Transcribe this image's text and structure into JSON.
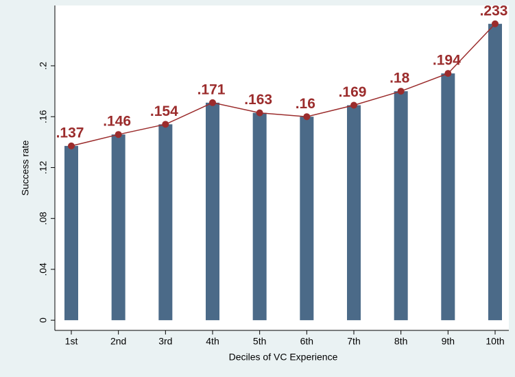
{
  "chart_data": {
    "type": "bar",
    "xlabel": "Deciles of VC Experience",
    "ylabel": "Success rate",
    "categories": [
      "1st",
      "2nd",
      "3rd",
      "4th",
      "5th",
      "6th",
      "7th",
      "8th",
      "9th",
      "10th"
    ],
    "values": [
      0.137,
      0.146,
      0.154,
      0.171,
      0.163,
      0.16,
      0.169,
      0.18,
      0.194,
      0.233
    ],
    "value_labels": [
      ".137",
      ".146",
      ".154",
      ".171",
      ".163",
      ".16",
      ".169",
      ".18",
      ".194",
      ".233"
    ],
    "color": "#4b6a88",
    "line_color": "#9b2c2c",
    "ylim": [
      -0.008,
      0.2474
    ],
    "yticks": [
      0,
      {
        "value": 0.04,
        "label": ".04"
      },
      {
        "value": 0.08,
        "label": ".08"
      },
      {
        "value": 0.12,
        "label": ".12"
      },
      {
        "value": 0.16,
        "label": ".16"
      },
      {
        "value": 0.2,
        "label": ".2"
      }
    ]
  }
}
